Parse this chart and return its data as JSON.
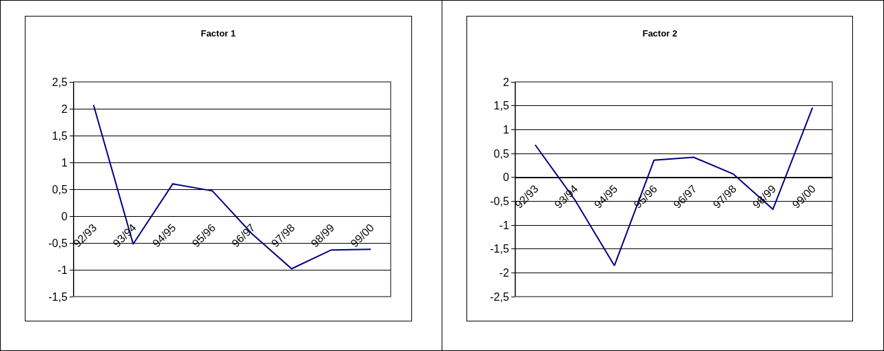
{
  "chart_data": [
    {
      "type": "line",
      "title": "Factor 1",
      "categories": [
        "92/93",
        "93/94",
        "94/95",
        "95/96",
        "96/97",
        "97/98",
        "98/99",
        "99/00"
      ],
      "series": [
        {
          "color": "#000080",
          "values": [
            2.07,
            -0.52,
            0.6,
            0.47,
            -0.33,
            -0.98,
            -0.63,
            -0.62
          ]
        }
      ],
      "ylim": [
        -1.5,
        2.5
      ],
      "yticks": [
        {
          "value": -1.5,
          "label": "-1,5"
        },
        -1,
        {
          "value": -0.5,
          "label": "-0,5"
        },
        0,
        {
          "value": 0.5,
          "label": "0,5"
        },
        1,
        {
          "value": 1.5,
          "label": "1,5"
        },
        2,
        {
          "value": 2.5,
          "label": "2,5"
        }
      ],
      "grid": "y",
      "marker": "none",
      "line_style": "solid"
    },
    {
      "type": "line",
      "title": "Factor 2",
      "categories": [
        "92/93",
        "93/94",
        "94/95",
        "95/96",
        "96/97",
        "97/98",
        "98/99",
        "99/00"
      ],
      "series": [
        {
          "color": "#000080",
          "values": [
            0.68,
            -0.47,
            -1.85,
            0.36,
            0.42,
            0.07,
            -0.67,
            1.46
          ]
        }
      ],
      "ylim": [
        -2.5,
        2
      ],
      "yticks": [
        {
          "value": -2.5,
          "label": "-2,5"
        },
        -2,
        {
          "value": -1.5,
          "label": "-1,5"
        },
        -1,
        {
          "value": -0.5,
          "label": "-0,5"
        },
        0,
        {
          "value": 0.5,
          "label": "0,5"
        },
        1,
        {
          "value": 1.5,
          "label": "1,5"
        },
        2
      ],
      "grid": "y",
      "marker": "none",
      "line_style": "solid"
    }
  ]
}
